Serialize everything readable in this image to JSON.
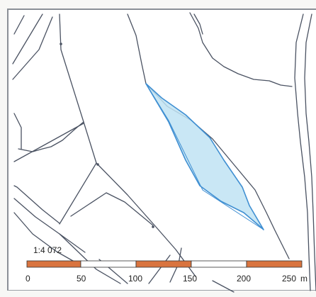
{
  "map": {
    "colors": {
      "line": "#4a5262",
      "parcel_stroke": "#3f8fd2",
      "parcel_fill": "#bfe3f3",
      "scale_orange": "#d9743f",
      "scale_white": "#ffffff"
    },
    "scale": {
      "ratio": "1:4 072",
      "unit": "m",
      "ticks": [
        {
          "value": 0,
          "label": "0"
        },
        {
          "value": 50,
          "label": "50"
        },
        {
          "value": 100,
          "label": "100"
        },
        {
          "value": 150,
          "label": "150"
        },
        {
          "value": 200,
          "label": "200"
        },
        {
          "value": 250,
          "label": "250"
        }
      ]
    }
  }
}
